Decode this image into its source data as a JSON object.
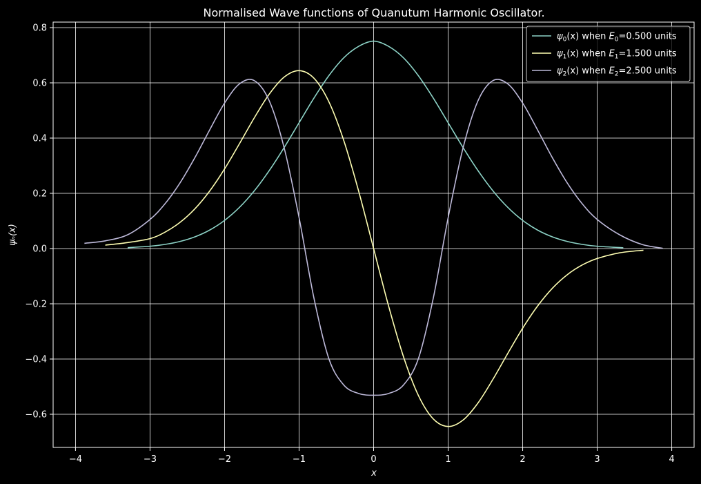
{
  "chart_data": {
    "type": "line",
    "title": "Normalised Wave functions of Quanutum Harmonic Oscillator.",
    "xlabel": "x",
    "ylabel": "ψₙ(x)",
    "xlim": [
      -4.3,
      4.3
    ],
    "ylim": [
      -0.72,
      0.82
    ],
    "x_ticks": [
      -4,
      -3,
      -2,
      -1,
      0,
      1,
      2,
      3,
      4
    ],
    "x_tick_labels": [
      "−4",
      "−3",
      "−2",
      "−1",
      "0",
      "1",
      "2",
      "3",
      "4"
    ],
    "y_ticks": [
      -0.6,
      -0.4,
      -0.2,
      0.0,
      0.2,
      0.4,
      0.6,
      0.8
    ],
    "y_tick_labels": [
      "−0.6",
      "−0.4",
      "−0.2",
      "0.0",
      "0.2",
      "0.4",
      "0.6",
      "0.8"
    ],
    "grid": true,
    "legend_position": "top-right",
    "background_color": "#000000",
    "foreground_color": "#ffffff",
    "series": [
      {
        "name": "ψ0(x) when E0=0.500 units",
        "legend": {
          "psi": "ψ",
          "sub": "0",
          "mid": "(x) when ",
          "e": "E",
          "esub": "0",
          "val": "=0.500 units"
        },
        "color": "#8dd3c7",
        "x": [
          -3.3,
          -3.0,
          -2.8,
          -2.6,
          -2.4,
          -2.2,
          -2.0,
          -1.8,
          -1.6,
          -1.4,
          -1.2,
          -1.0,
          -0.8,
          -0.6,
          -0.4,
          -0.2,
          0.0,
          0.2,
          0.4,
          0.6,
          0.8,
          1.0,
          1.2,
          1.4,
          1.6,
          1.8,
          2.0,
          2.2,
          2.4,
          2.6,
          2.8,
          3.0,
          3.35
        ],
        "y": [
          0.0033,
          0.0084,
          0.015,
          0.0256,
          0.0422,
          0.0669,
          0.1019,
          0.1491,
          0.2094,
          0.2825,
          0.3659,
          0.4556,
          0.5451,
          0.6263,
          0.6909,
          0.7324,
          0.7511,
          0.7324,
          0.6909,
          0.6263,
          0.5451,
          0.4556,
          0.3659,
          0.2825,
          0.2094,
          0.1491,
          0.1019,
          0.0669,
          0.0422,
          0.0256,
          0.015,
          0.0084,
          0.0028
        ]
      },
      {
        "name": "ψ1(x) when E1=1.500 units",
        "legend": {
          "psi": "ψ",
          "sub": "1",
          "mid": "(x) when ",
          "e": "E",
          "esub": "1",
          "val": "=1.500 units"
        },
        "color": "#ffffb3",
        "x": [
          -3.6,
          -3.3,
          -3.0,
          -2.8,
          -2.6,
          -2.4,
          -2.2,
          -2.0,
          -1.8,
          -1.6,
          -1.4,
          -1.2,
          -1.0,
          -0.8,
          -0.6,
          -0.4,
          -0.2,
          0.0,
          0.2,
          0.4,
          0.6,
          0.8,
          1.0,
          1.2,
          1.4,
          1.6,
          1.8,
          2.0,
          2.2,
          2.4,
          2.6,
          2.8,
          3.0,
          3.3,
          3.62
        ],
        "y": [
          0.0124,
          0.0218,
          0.0359,
          0.0593,
          0.0943,
          0.1433,
          0.2082,
          0.2882,
          0.3796,
          0.4738,
          0.5593,
          0.621,
          0.6443,
          0.6167,
          0.5314,
          0.3909,
          0.2071,
          0.0,
          -0.2071,
          -0.3909,
          -0.5314,
          -0.6167,
          -0.6443,
          -0.621,
          -0.5593,
          -0.4738,
          -0.3796,
          -0.2882,
          -0.2082,
          -0.1433,
          -0.0943,
          -0.0593,
          -0.0359,
          -0.0155,
          -0.006
        ]
      },
      {
        "name": "ψ2(x) when E2=2.500 units",
        "legend": {
          "psi": "ψ",
          "sub": "2",
          "mid": "(x) when ",
          "e": "E",
          "esub": "2",
          "val": "=2.500 units"
        },
        "color": "#bebada",
        "x": [
          -3.88,
          -3.6,
          -3.3,
          -3.0,
          -2.8,
          -2.6,
          -2.4,
          -2.2,
          -2.0,
          -1.8,
          -1.6,
          -1.4,
          -1.2,
          -1.0,
          -0.8,
          -0.6,
          -0.4,
          -0.2,
          0.0,
          0.2,
          0.4,
          0.6,
          0.8,
          1.0,
          1.2,
          1.4,
          1.6,
          1.8,
          2.0,
          2.2,
          2.4,
          2.6,
          2.8,
          3.0,
          3.3,
          3.6,
          3.88
        ],
        "y": [
          0.019,
          0.028,
          0.05,
          0.1054,
          0.1618,
          0.2367,
          0.3283,
          0.4295,
          0.5268,
          0.5963,
          0.608,
          0.5348,
          0.3643,
          0.1118,
          -0.1802,
          -0.3992,
          -0.4942,
          -0.5249,
          -0.5311,
          -0.5249,
          -0.4942,
          -0.3992,
          -0.1802,
          0.1118,
          0.3643,
          0.5348,
          0.608,
          0.5963,
          0.5268,
          0.4295,
          0.3283,
          0.2367,
          0.1618,
          0.1054,
          0.05,
          0.015,
          0.001
        ]
      }
    ]
  }
}
